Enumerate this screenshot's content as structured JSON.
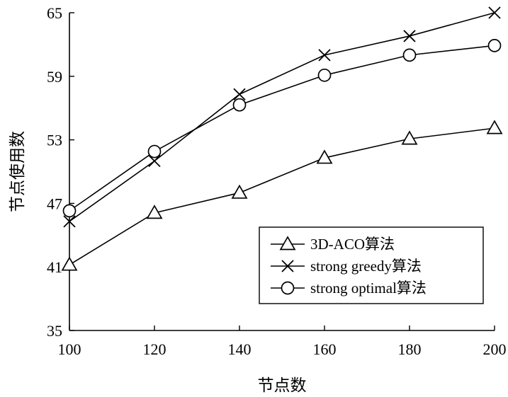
{
  "chart_data": {
    "type": "line",
    "title": "",
    "xlabel": "节点数",
    "ylabel": "节点使用数",
    "xlim": [
      100,
      200
    ],
    "ylim": [
      35,
      65
    ],
    "xticks": [
      100,
      120,
      140,
      160,
      180,
      200
    ],
    "yticks": [
      35,
      41,
      47,
      53,
      59,
      65
    ],
    "grid": false,
    "legend_position": "bottom-right",
    "series": [
      {
        "name": "3D-ACO算法",
        "marker": "triangle",
        "x": [
          100,
          120,
          140,
          160,
          180,
          200
        ],
        "y": [
          41.2,
          46.1,
          48.0,
          51.3,
          53.1,
          54.1
        ]
      },
      {
        "name": "strong greedy算法",
        "marker": "x",
        "x": [
          100,
          120,
          140,
          160,
          180,
          200
        ],
        "y": [
          45.3,
          51.0,
          57.3,
          61.0,
          62.8,
          65.0
        ]
      },
      {
        "name": "strong optimal算法",
        "marker": "circle",
        "x": [
          100,
          120,
          140,
          160,
          180,
          200
        ],
        "y": [
          46.3,
          51.9,
          56.3,
          59.1,
          61.0,
          61.9
        ]
      }
    ]
  }
}
